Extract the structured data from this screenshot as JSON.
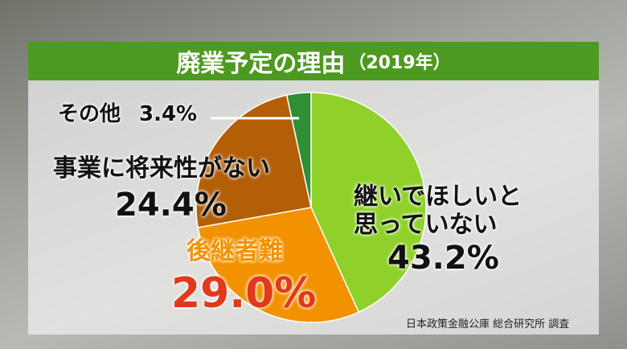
{
  "chart_data": {
    "type": "pie",
    "title": "廃業予定の理由",
    "subtitle": "（2019年）",
    "categories": [
      "継いでほしいと思っていない",
      "後継者難",
      "事業に将来性がない",
      "その他"
    ],
    "values": [
      43.2,
      29.0,
      24.4,
      3.4
    ],
    "value_labels": [
      "43.2%",
      "29.0%",
      "24.4%",
      "3.4%"
    ],
    "colors": [
      "#8fd12a",
      "#f39200",
      "#b35f08",
      "#2f8f35"
    ],
    "source": "日本政策金融公庫 総合研究所 調査"
  }
}
